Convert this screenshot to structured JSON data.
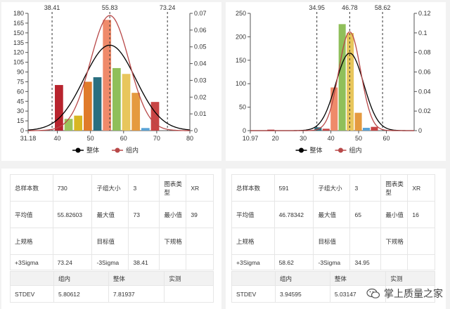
{
  "chart_data": [
    {
      "type": "bar",
      "xlim": [
        31.18,
        80
      ],
      "xticks": [
        "31.18",
        "40",
        "50",
        "60",
        "70",
        "80"
      ],
      "ylim": [
        0,
        180
      ],
      "yticks": [
        "0",
        "15",
        "30",
        "45",
        "60",
        "75",
        "90",
        "105",
        "120",
        "135",
        "150",
        "165",
        "180"
      ],
      "y2lim": [
        0,
        0.07
      ],
      "y2ticks": [
        "0",
        "0.01",
        "0.02",
        "0.03",
        "0.04",
        "0.05",
        "0.06",
        "0.07"
      ],
      "bar_width": 2.7,
      "bars": [
        {
          "x": 40.6,
          "value": 70,
          "color": "#b8242e"
        },
        {
          "x": 43.5,
          "value": 18,
          "color": "#9bc35a"
        },
        {
          "x": 46.4,
          "value": 23,
          "color": "#d8b623"
        },
        {
          "x": 49.3,
          "value": 75,
          "color": "#e07b2a"
        },
        {
          "x": 52.2,
          "value": 82,
          "color": "#2a6f80"
        },
        {
          "x": 55.1,
          "value": 170,
          "color": "#ef8a6a"
        },
        {
          "x": 58.0,
          "value": 96,
          "color": "#8fbf5a"
        },
        {
          "x": 60.9,
          "value": 87,
          "color": "#e8c65c"
        },
        {
          "x": 63.8,
          "value": 58,
          "color": "#e59a3f"
        },
        {
          "x": 66.7,
          "value": 4,
          "color": "#5aa3d6"
        },
        {
          "x": 69.6,
          "value": 44,
          "color": "#c84444"
        }
      ],
      "reference_lines": [
        {
          "x": 38.41,
          "label": "38.41"
        },
        {
          "x": 55.83,
          "label": "55.83"
        },
        {
          "x": 73.24,
          "label": "73.24"
        }
      ],
      "curves": [
        {
          "name": "整体",
          "mean": 55.82603,
          "sd": 7.81937,
          "color": "#000000"
        },
        {
          "name": "组内",
          "mean": 55.82603,
          "sd": 5.80612,
          "color": "#b84848"
        }
      ],
      "legend": {
        "position": "bottom",
        "items": [
          {
            "label": "整体",
            "color": "#000000"
          },
          {
            "label": "组内",
            "color": "#b84848"
          }
        ]
      }
    },
    {
      "type": "bar",
      "xlim": [
        10.97,
        70
      ],
      "xticks": [
        "10.97",
        "20",
        "30",
        "40",
        "50",
        "60"
      ],
      "ylim": [
        0,
        250
      ],
      "yticks": [
        "0",
        "50",
        "100",
        "150",
        "200",
        "250"
      ],
      "y2lim": [
        0,
        0.12
      ],
      "y2ticks": [
        "0",
        "0.02",
        "0.04",
        "0.06",
        "0.08",
        "0.1",
        "0.12"
      ],
      "bar_width": 2.8,
      "bars": [
        {
          "x": 18.5,
          "value": 2,
          "color": "#b8242e"
        },
        {
          "x": 35.5,
          "value": 7,
          "color": "#2a6f80"
        },
        {
          "x": 38.4,
          "value": 4,
          "color": "#c84444"
        },
        {
          "x": 41.3,
          "value": 92,
          "color": "#ef8a6a"
        },
        {
          "x": 44.2,
          "value": 227,
          "color": "#8fbf5a"
        },
        {
          "x": 47.1,
          "value": 208,
          "color": "#e8c65c"
        },
        {
          "x": 50.0,
          "value": 38,
          "color": "#e59a3f"
        },
        {
          "x": 52.9,
          "value": 6,
          "color": "#5aa3d6"
        },
        {
          "x": 55.8,
          "value": 8,
          "color": "#c84444"
        }
      ],
      "reference_lines": [
        {
          "x": 34.95,
          "label": "34.95"
        },
        {
          "x": 46.78,
          "label": "46.78"
        },
        {
          "x": 58.62,
          "label": "58.62"
        }
      ],
      "curves": [
        {
          "name": "整体",
          "mean": 46.78342,
          "sd": 5.03147,
          "color": "#000000"
        },
        {
          "name": "组内",
          "mean": 46.78342,
          "sd": 3.94595,
          "color": "#b84848"
        }
      ],
      "legend": {
        "position": "bottom",
        "items": [
          {
            "label": "整体",
            "color": "#000000"
          },
          {
            "label": "组内",
            "color": "#b84848"
          }
        ]
      }
    }
  ],
  "left_stats": {
    "rows": [
      [
        "总样本数",
        "730",
        "子组大小",
        "3",
        "图表类型",
        "XR"
      ],
      [
        "平均值",
        "55.82603",
        "最大值",
        "73",
        "最小值",
        "39"
      ],
      [
        "上规格",
        "",
        "目标值",
        "",
        "下规格",
        ""
      ],
      [
        "+3Sigma",
        "73.24",
        "-3Sigma",
        "38.41",
        "",
        ""
      ]
    ],
    "stdev_header": [
      "",
      "组内",
      "整体",
      "实测"
    ],
    "stdev_row": [
      "STDEV",
      "5.80612",
      "7.81937",
      ""
    ]
  },
  "right_stats": {
    "rows": [
      [
        "总样本数",
        "591",
        "子组大小",
        "3",
        "图表类型",
        "XR"
      ],
      [
        "平均值",
        "46.78342",
        "最大值",
        "65",
        "最小值",
        "16"
      ],
      [
        "上规格",
        "",
        "目标值",
        "",
        "下规格",
        ""
      ],
      [
        "+3Sigma",
        "58.62",
        "-3Sigma",
        "34.95",
        "",
        ""
      ]
    ],
    "stdev_header": [
      "",
      "组内",
      "整体",
      "实测"
    ],
    "stdev_row": [
      "STDEV",
      "3.94595",
      "5.03147",
      ""
    ]
  },
  "watermark": {
    "text": "掌上质量之家"
  }
}
